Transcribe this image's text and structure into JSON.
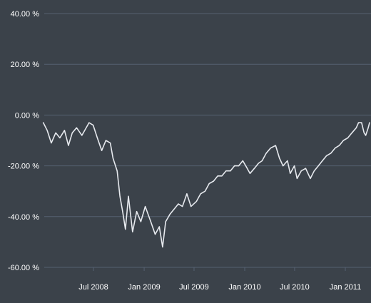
{
  "colors": {
    "background": "#3b424a",
    "gridline": "#556070",
    "line": "#e6e9ee",
    "text": "#ffffff"
  },
  "chart_data": {
    "type": "line",
    "title": "",
    "xlabel": "",
    "ylabel": "",
    "ylim": [
      -60,
      40
    ],
    "xlim": [
      "2008-01-01",
      "2011-04-01"
    ],
    "grid": "horizontal",
    "y_ticks": [
      {
        "value": 40,
        "label": "40.00 %"
      },
      {
        "value": 20,
        "label": "20.00 %"
      },
      {
        "value": 0,
        "label": "0.00 %"
      },
      {
        "value": -20,
        "label": "-20.00 %"
      },
      {
        "value": -40,
        "label": "-40.00 %"
      },
      {
        "value": -60,
        "label": "-60.00 %"
      }
    ],
    "x_ticks": [
      {
        "date": "2008-07-01",
        "label": "Jul 2008"
      },
      {
        "date": "2009-01-01",
        "label": "Jan 2009"
      },
      {
        "date": "2009-07-01",
        "label": "Jul 2009"
      },
      {
        "date": "2010-01-01",
        "label": "Jan 2010"
      },
      {
        "date": "2010-07-01",
        "label": "Jul 2010"
      },
      {
        "date": "2011-01-01",
        "label": "Jan 2011"
      }
    ],
    "series": [
      {
        "color": "#e6e9ee",
        "x": [
          "2008-01-01",
          "2008-01-15",
          "2008-01-30",
          "2008-02-15",
          "2008-03-01",
          "2008-03-18",
          "2008-04-01",
          "2008-04-15",
          "2008-05-01",
          "2008-05-20",
          "2008-06-15",
          "2008-06-30",
          "2008-07-15",
          "2008-07-31",
          "2008-08-15",
          "2008-08-31",
          "2008-09-10",
          "2008-09-25",
          "2008-10-05",
          "2008-10-15",
          "2008-10-25",
          "2008-11-05",
          "2008-11-20",
          "2008-12-05",
          "2008-12-20",
          "2009-01-05",
          "2009-01-25",
          "2009-02-10",
          "2009-02-25",
          "2009-03-09",
          "2009-03-20",
          "2009-04-05",
          "2009-04-20",
          "2009-05-05",
          "2009-05-20",
          "2009-06-05",
          "2009-06-20",
          "2009-07-10",
          "2009-07-25",
          "2009-08-10",
          "2009-08-25",
          "2009-09-10",
          "2009-09-25",
          "2009-10-10",
          "2009-10-25",
          "2009-11-10",
          "2009-11-25",
          "2009-12-10",
          "2009-12-25",
          "2010-01-10",
          "2010-01-20",
          "2010-02-05",
          "2010-02-20",
          "2010-03-05",
          "2010-03-20",
          "2010-04-05",
          "2010-04-23",
          "2010-05-07",
          "2010-05-20",
          "2010-06-05",
          "2010-06-15",
          "2010-06-30",
          "2010-07-10",
          "2010-07-25",
          "2010-08-10",
          "2010-08-27",
          "2010-09-10",
          "2010-09-25",
          "2010-10-10",
          "2010-10-25",
          "2010-11-10",
          "2010-11-25",
          "2010-12-10",
          "2010-12-25",
          "2011-01-10",
          "2011-01-25",
          "2011-02-10",
          "2011-02-18",
          "2011-03-01",
          "2011-03-10",
          "2011-03-16",
          "2011-03-25",
          "2011-04-01"
        ],
        "values": [
          -3,
          -6,
          -11,
          -7,
          -9,
          -6,
          -12,
          -7,
          -5,
          -8,
          -3,
          -4,
          -9,
          -14,
          -10,
          -11,
          -17,
          -22,
          -32,
          -38,
          -45,
          -32,
          -46,
          -38,
          -42,
          -36,
          -42,
          -47,
          -44,
          -52,
          -42,
          -39,
          -37,
          -35,
          -36,
          -31,
          -36,
          -34,
          -31,
          -30,
          -27,
          -26,
          -24,
          -24,
          -22,
          -22,
          -20,
          -20,
          -18,
          -21,
          -23,
          -21,
          -19,
          -18,
          -15,
          -13,
          -12,
          -17,
          -20,
          -18,
          -23,
          -20,
          -25,
          -22,
          -21,
          -25,
          -22,
          -20,
          -18,
          -16,
          -15,
          -13,
          -12,
          -10,
          -9,
          -7,
          -5,
          -3,
          -3,
          -7,
          -8,
          -5,
          -3
        ]
      }
    ]
  }
}
